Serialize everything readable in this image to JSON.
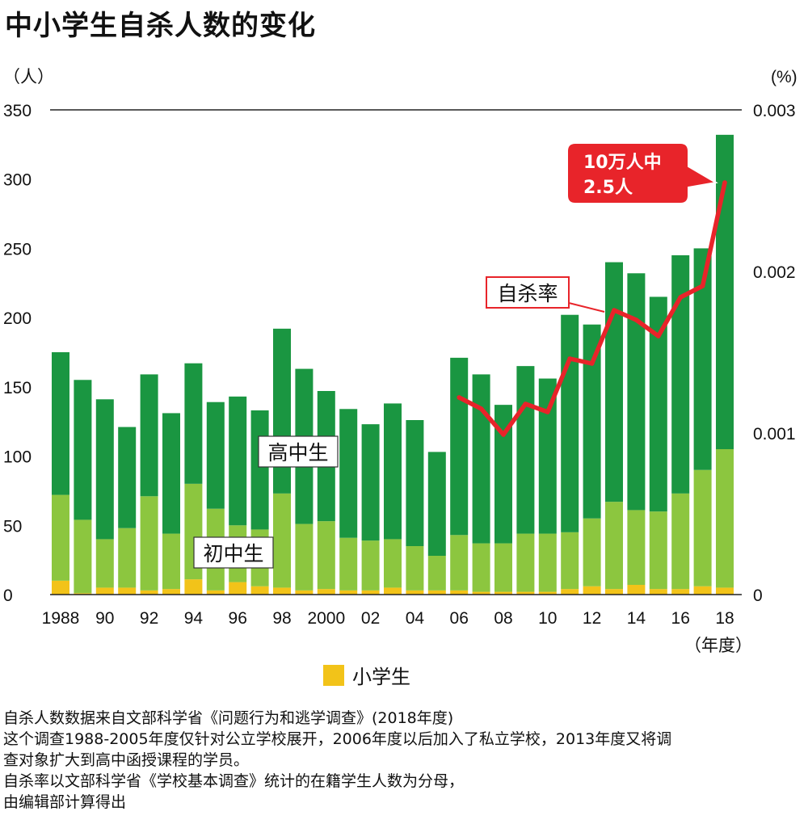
{
  "title": "中小学生自杀人数的变化",
  "chart_data": {
    "type": "bar",
    "stacked": true,
    "categories": [
      "1988",
      "1989",
      "1990",
      "1991",
      "1992",
      "1993",
      "1994",
      "1995",
      "1996",
      "1997",
      "1998",
      "1999",
      "2000",
      "2001",
      "2002",
      "2003",
      "2004",
      "2005",
      "2006",
      "2007",
      "2008",
      "2009",
      "2010",
      "2011",
      "2012",
      "2013",
      "2014",
      "2015",
      "2016",
      "2017",
      "2018"
    ],
    "x_tick_labels": [
      "1988",
      "90",
      "92",
      "94",
      "96",
      "98",
      "2000",
      "02",
      "04",
      "06",
      "08",
      "10",
      "12",
      "14",
      "16",
      "18"
    ],
    "x_tick_indices": [
      0,
      2,
      4,
      6,
      8,
      10,
      12,
      14,
      16,
      18,
      20,
      22,
      24,
      26,
      28,
      30
    ],
    "x_unit": "（年度）",
    "y_unit_left": "（人）",
    "y_unit_right": "(%)",
    "ylim": [
      0,
      350
    ],
    "yticks": [
      "0",
      "50",
      "100",
      "150",
      "200",
      "250",
      "300",
      "350"
    ],
    "y2lim": [
      0,
      0.003
    ],
    "y2ticks": [
      "0",
      "0.001",
      "0.002",
      "0.003"
    ],
    "series": [
      {
        "name": "小学生",
        "color": "#f2c319",
        "values": [
          10,
          1,
          5,
          5,
          3,
          4,
          11,
          3,
          9,
          6,
          5,
          3,
          4,
          3,
          3,
          5,
          3,
          3,
          3,
          2,
          2,
          2,
          2,
          4,
          6,
          4,
          7,
          4,
          4,
          6,
          5
        ]
      },
      {
        "name": "初中生",
        "color": "#8cc63f",
        "values": [
          62,
          53,
          35,
          43,
          68,
          40,
          69,
          59,
          41,
          41,
          68,
          48,
          49,
          38,
          36,
          35,
          32,
          25,
          40,
          35,
          35,
          42,
          42,
          41,
          49,
          63,
          54,
          56,
          69,
          84,
          100
        ]
      },
      {
        "name": "高中生",
        "color": "#1a9641",
        "values": [
          103,
          101,
          101,
          73,
          88,
          87,
          87,
          77,
          93,
          86,
          119,
          112,
          94,
          93,
          84,
          98,
          91,
          75,
          128,
          122,
          100,
          121,
          112,
          157,
          140,
          173,
          171,
          155,
          172,
          160,
          227
        ]
      }
    ],
    "rate": {
      "name": "自杀率",
      "color": "#e8242a",
      "start_index": 18,
      "values": [
        0.00122,
        0.00115,
        0.00099,
        0.00118,
        0.00113,
        0.00146,
        0.00143,
        0.00176,
        0.0017,
        0.0016,
        0.00184,
        0.00191,
        0.00255
      ]
    },
    "series_labels": {
      "high": "高中生",
      "middle": "初中生",
      "rate": "自杀率"
    },
    "callout": {
      "line1": "10万人中",
      "line2": "2.5人",
      "color": "#e8242a"
    },
    "legend_position": "bottom-center",
    "grid": false
  },
  "legend": {
    "label": "小学生",
    "color": "#f2c319"
  },
  "notes": [
    "自杀人数数据来自文部科学省《问题行为和逃学调查》(2018年度)",
    "这个调查1988-2005年度仅针对公立学校展开，2006年度以后加入了私立学校，2013年度又将调",
    "查对象扩大到高中函授课程的学员。",
    "自杀率以文部科学省《学校基本调查》统计的在籍学生人数为分母，",
    "由编辑部计算得出"
  ]
}
